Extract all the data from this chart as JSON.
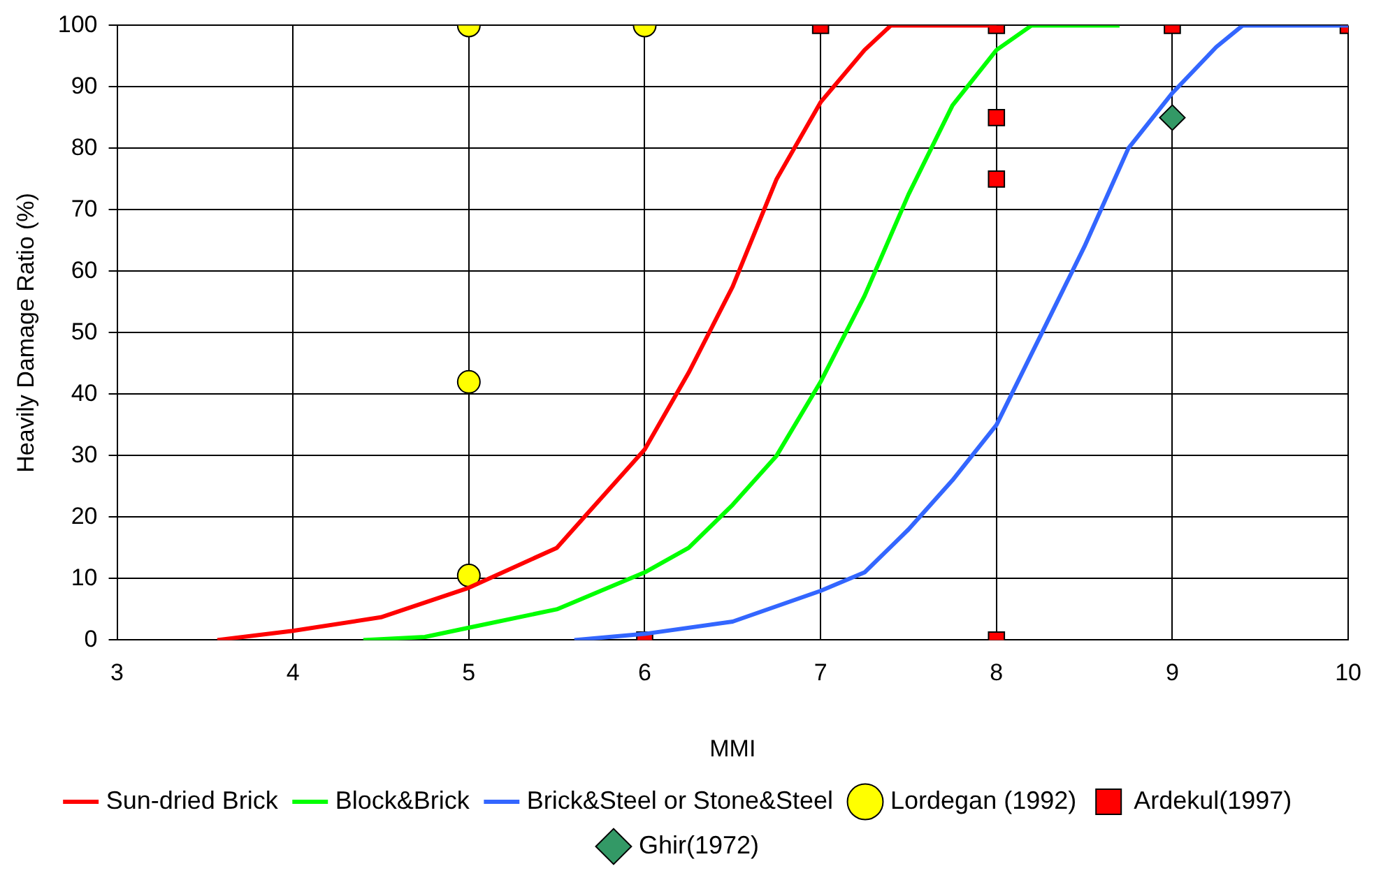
{
  "chart_data": {
    "type": "line",
    "xlabel": "MMI",
    "ylabel": "Heavily Damage Ratio (%)",
    "xlim": [
      3,
      10
    ],
    "xticks": [
      3,
      4,
      5,
      6,
      7,
      8,
      9,
      10
    ],
    "ylim": [
      0,
      100
    ],
    "yticks": [
      0,
      10,
      20,
      30,
      40,
      50,
      60,
      70,
      80,
      90,
      100
    ],
    "grid": true,
    "legend": "bottom",
    "line_style": "solid",
    "series": [
      {
        "name": "Sun-dried Brick",
        "marker": "none",
        "color": "#ff0000",
        "x": [
          3.57,
          4,
          4.5,
          5,
          5.5,
          6,
          6.25,
          6.5,
          6.75,
          7,
          7.25,
          7.4,
          8
        ],
        "values": [
          0,
          1.5,
          3.7,
          8.5,
          15,
          31,
          43.5,
          57.5,
          75,
          87.5,
          96,
          100,
          100
        ]
      },
      {
        "name": "Block&Brick",
        "marker": "none",
        "color": "#00ff00",
        "x": [
          4.4,
          4.75,
          5,
          5.5,
          6,
          6.25,
          6.5,
          6.75,
          7,
          7.25,
          7.5,
          7.75,
          8,
          8.2,
          8.7
        ],
        "values": [
          0,
          0.5,
          2,
          5,
          11,
          15,
          22,
          30,
          42,
          56,
          72.5,
          87,
          96,
          100,
          100
        ]
      },
      {
        "name": "Brick&Steel or Stone&Steel",
        "marker": "none",
        "color": "#3366ff",
        "x": [
          5.6,
          6,
          6.5,
          7,
          7.25,
          7.5,
          7.75,
          8,
          8.25,
          8.5,
          8.75,
          9,
          9.25,
          9.4,
          10
        ],
        "values": [
          0,
          1,
          3,
          8,
          11,
          18,
          26,
          35,
          49.5,
          64,
          80,
          89,
          96.5,
          100,
          100
        ]
      },
      {
        "name": "Lordegan (1992)",
        "type": "scatter",
        "marker": "circle",
        "color": "#ffff00",
        "x": [
          5,
          6,
          5,
          5
        ],
        "values": [
          100,
          100,
          42,
          10.5
        ]
      },
      {
        "name": "Ardekul(1997)",
        "type": "scatter",
        "marker": "square",
        "color": "#ff0000",
        "x": [
          6,
          7,
          8,
          8,
          8,
          8,
          9,
          10
        ],
        "values": [
          0,
          100,
          100,
          85,
          75,
          0,
          100,
          100
        ]
      },
      {
        "name": "Ghir(1972)",
        "type": "scatter",
        "marker": "diamond",
        "color": "#339966",
        "x": [
          9
        ],
        "values": [
          85
        ]
      }
    ]
  }
}
